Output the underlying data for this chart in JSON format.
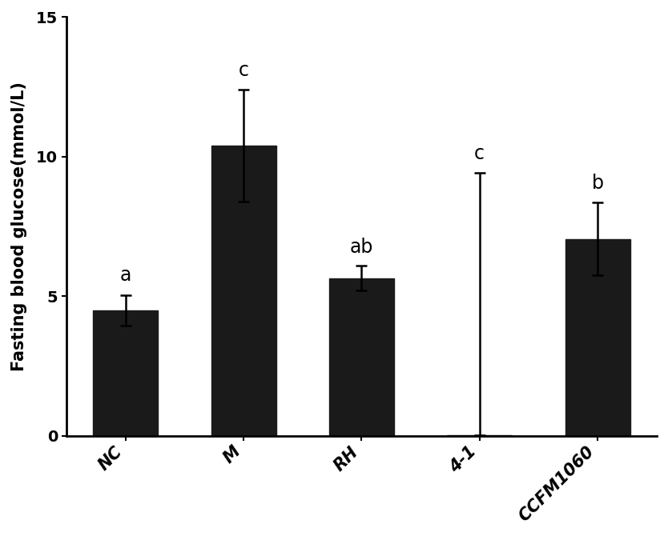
{
  "categories": [
    "NC",
    "M",
    "RH",
    "4-1",
    "CCFM1060"
  ],
  "values": [
    4.5,
    10.4,
    5.65,
    0.02,
    7.05
  ],
  "error_upper": [
    0.55,
    2.0,
    0.45,
    9.4,
    1.3
  ],
  "error_lower": [
    0.55,
    2.0,
    0.45,
    0.0,
    1.3
  ],
  "stat_labels": [
    "a",
    "c",
    "ab",
    "c",
    "b"
  ],
  "stat_label_offsets": [
    0.35,
    0.35,
    0.3,
    0.35,
    0.35
  ],
  "bar_color": "#1a1a1a",
  "ylabel": "Fasting blood glucose(mmol/L)",
  "ylim": [
    0,
    15
  ],
  "yticks": [
    0,
    5,
    10,
    15
  ],
  "bar_width": 0.55,
  "background_color": "#ffffff",
  "stat_label_fontsize": 17,
  "ylabel_fontsize": 15,
  "tick_fontsize": 14,
  "xtick_fontsize": 15,
  "capsize": 5,
  "elinewidth": 1.8,
  "ecapthick": 1.8
}
